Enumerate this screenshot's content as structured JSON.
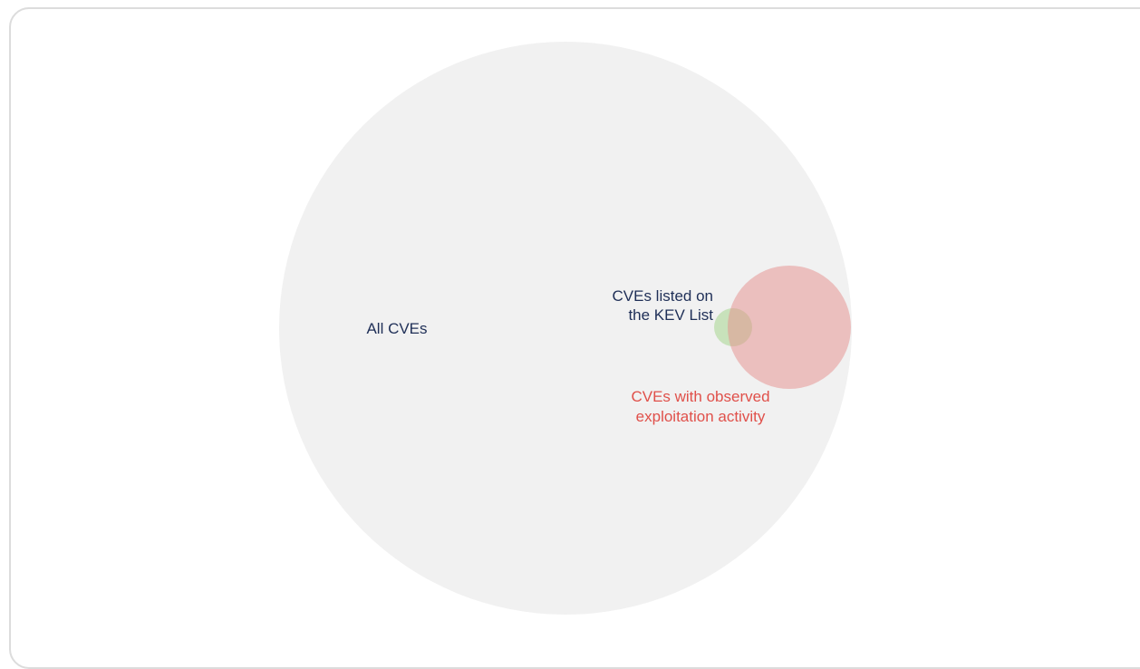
{
  "diagram": {
    "sets": [
      {
        "id": "all",
        "label": "All CVEs",
        "color": "#f1f1f1",
        "text_color": "#1f2f57"
      },
      {
        "id": "kev",
        "label_lines": [
          "CVEs listed on",
          "the KEV List"
        ],
        "color": "#b9dca8",
        "text_color": "#1f2f57"
      },
      {
        "id": "exploited",
        "label_lines": [
          "CVEs with observed",
          "exploitation activity"
        ],
        "color": "#e58e8b",
        "text_color": "#e0504a"
      }
    ]
  }
}
